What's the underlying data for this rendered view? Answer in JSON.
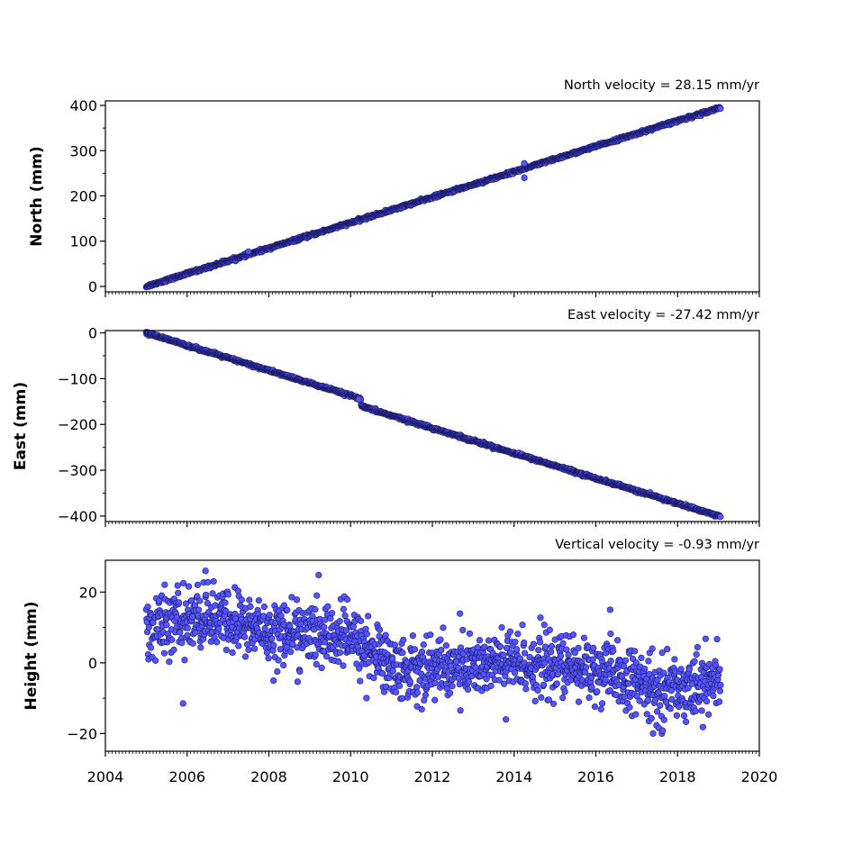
{
  "chart_data": {
    "type": "scatter",
    "marker_fill": "#5555ff",
    "marker_edge": "#1a1a66",
    "x_axis": {
      "range": [
        2004,
        2020
      ],
      "ticks": [
        2004,
        2006,
        2008,
        2010,
        2012,
        2014,
        2016,
        2018,
        2020
      ],
      "tick_labels": [
        "2004",
        "2006",
        "2008",
        "2010",
        "2012",
        "2014",
        "2016",
        "2018",
        "2020"
      ]
    },
    "time_span": [
      2005.0,
      2019.05
    ],
    "panels": [
      {
        "id": "north",
        "title": "North velocity = 28.15 mm/yr",
        "ylabel": "North (mm)",
        "ylim": [
          -12,
          410
        ],
        "yticks": [
          0,
          100,
          200,
          300,
          400
        ],
        "ytick_labels": [
          "0",
          "100",
          "200",
          "300",
          "400"
        ],
        "velocity_mm_per_yr": 28.15,
        "start_value": 0,
        "offsets": [],
        "scatter_sd": 1.5,
        "outliers": [
          [
            2007.5,
            77
          ],
          [
            2014.25,
            272
          ],
          [
            2014.25,
            240
          ]
        ]
      },
      {
        "id": "east",
        "title": "East velocity = -27.42 mm/yr",
        "ylabel": "East (mm)",
        "ylim": [
          -412,
          5
        ],
        "yticks": [
          0,
          -100,
          -200,
          -300,
          -400
        ],
        "ytick_labels": [
          "0",
          "−100",
          "−200",
          "−300",
          "−400"
        ],
        "velocity_mm_per_yr": -27.42,
        "start_value": 0,
        "offsets": [
          [
            2010.25,
            -16
          ]
        ],
        "scatter_sd": 1.5,
        "outliers": [
          [
            2010.2,
            -145
          ]
        ]
      },
      {
        "id": "height",
        "title": "Vertical velocity = -0.93 mm/yr",
        "ylabel": "Height (mm)",
        "ylim": [
          -25,
          29
        ],
        "yticks": [
          -20,
          0,
          20
        ],
        "ytick_labels": [
          "−20",
          "0",
          "20"
        ],
        "velocity_mm_per_yr": -0.93,
        "trend_points": [
          [
            2005,
            10
          ],
          [
            2006.5,
            13
          ],
          [
            2008,
            9
          ],
          [
            2010,
            7
          ],
          [
            2011.2,
            -2
          ],
          [
            2014,
            0
          ],
          [
            2016,
            -2
          ],
          [
            2017.5,
            -8
          ],
          [
            2019,
            -5
          ]
        ],
        "scatter_sd": 4.5,
        "outliers": [
          [
            2005.9,
            -11.5
          ],
          [
            2006.45,
            26
          ],
          [
            2016.35,
            15
          ],
          [
            2017.4,
            -20
          ],
          [
            2013.8,
            -16
          ]
        ]
      }
    ]
  }
}
